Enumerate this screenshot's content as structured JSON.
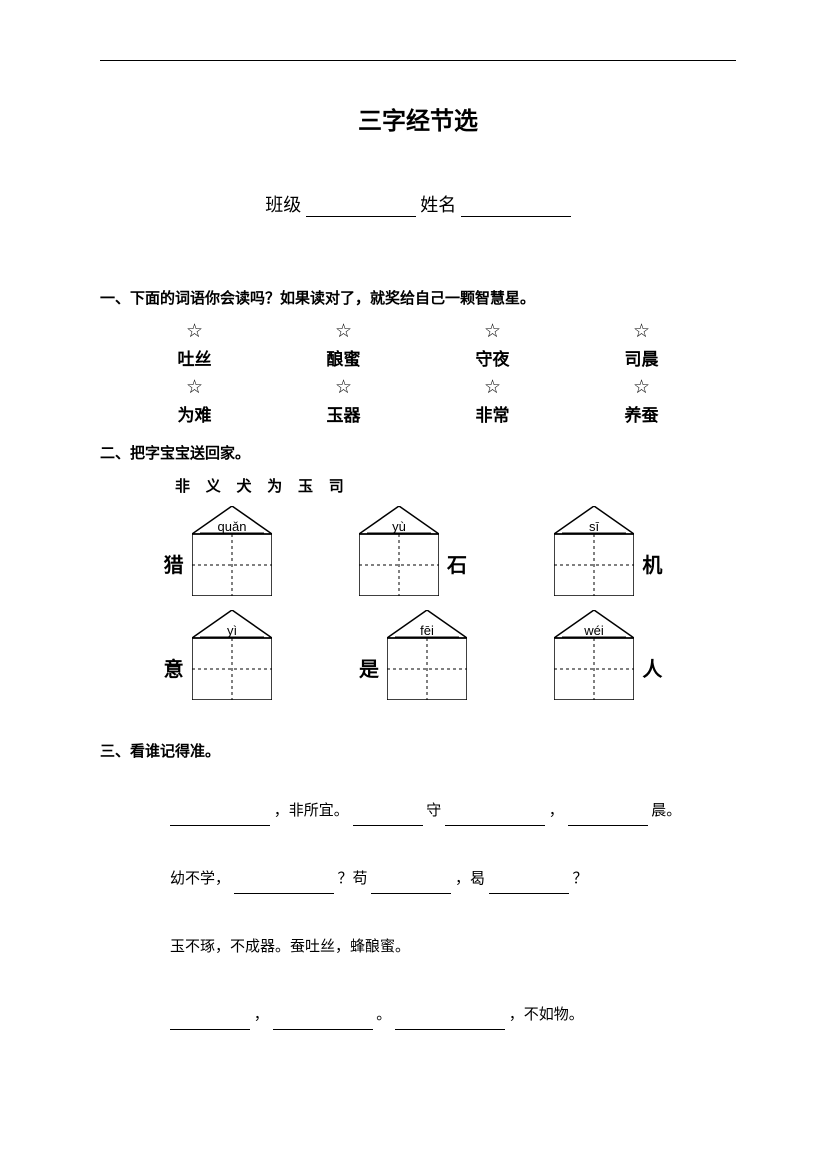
{
  "title": "三字经节选",
  "info": {
    "class_label": "班级",
    "name_label": "姓名"
  },
  "section1": {
    "heading": "一、下面的词语你会读吗？如果读对了，就奖给自己一颗智慧星。",
    "star": "☆",
    "row1": [
      "吐丝",
      "酿蜜",
      "守夜",
      "司晨"
    ],
    "row2": [
      "为难",
      "玉器",
      "非常",
      "养蚕"
    ]
  },
  "section2": {
    "heading": "二、把字宝宝送回家。",
    "hint": "非 义 犬 为 玉 司",
    "houses_row1": [
      {
        "pinyin": "quǎn",
        "left": "猎",
        "right": ""
      },
      {
        "pinyin": "yù",
        "left": "",
        "right": "石"
      },
      {
        "pinyin": "sī",
        "left": "",
        "right": "机"
      }
    ],
    "houses_row2": [
      {
        "pinyin": "yì",
        "left": "意",
        "right": ""
      },
      {
        "pinyin": "fēi",
        "left": "是",
        "right": ""
      },
      {
        "pinyin": "wéi",
        "left": "",
        "right": "人"
      }
    ]
  },
  "section3": {
    "heading": "三、看谁记得准。",
    "line1_a": "，非所宜。",
    "line1_b": "守",
    "line1_c": "，",
    "line1_d": "晨。",
    "line2_a": "幼不学，",
    "line2_b": "？苟",
    "line2_c": "，曷",
    "line2_d": "？",
    "line3": "玉不琢，不成器。蚕吐丝，蜂酿蜜。",
    "line4_a": "，",
    "line4_b": "。",
    "line4_c": "，不如物。"
  }
}
